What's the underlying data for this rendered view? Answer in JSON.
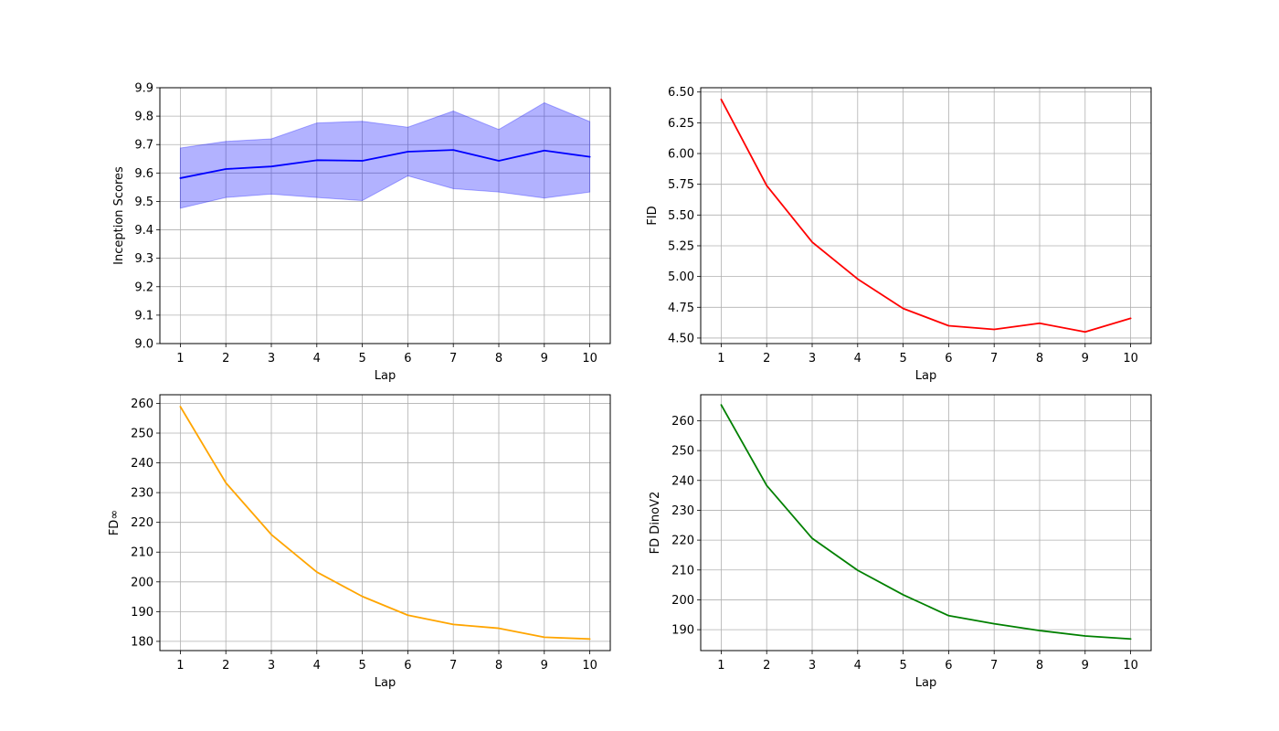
{
  "chart_data": [
    {
      "type": "line",
      "xlabel": "Lap",
      "ylabel": "Inception Scores",
      "x": [
        1,
        2,
        3,
        4,
        5,
        6,
        7,
        8,
        9,
        10
      ],
      "xticks": [
        "1",
        "2",
        "3",
        "4",
        "5",
        "6",
        "7",
        "8",
        "9",
        "10"
      ],
      "xlim": [
        0.55,
        10.45
      ],
      "ylim": [
        9.0,
        9.9
      ],
      "yticks": [
        9.0,
        9.1,
        9.2,
        9.3,
        9.4,
        9.5,
        9.6,
        9.7,
        9.8,
        9.9
      ],
      "ytick_labels": [
        "9.0",
        "9.1",
        "9.2",
        "9.3",
        "9.4",
        "9.5",
        "9.6",
        "9.7",
        "9.8",
        "9.9"
      ],
      "grid": true,
      "series": [
        {
          "values": [
            9.582,
            9.614,
            9.623,
            9.645,
            9.643,
            9.675,
            9.681,
            9.643,
            9.679,
            9.657
          ],
          "color": "#0000ff",
          "band_upper": [
            9.688,
            9.711,
            9.72,
            9.776,
            9.782,
            9.761,
            9.818,
            9.753,
            9.847,
            9.781
          ],
          "band_lower": [
            9.476,
            9.514,
            9.526,
            9.514,
            9.503,
            9.59,
            9.545,
            9.533,
            9.512,
            9.533
          ],
          "band_color": "#0000ff"
        }
      ]
    },
    {
      "type": "line",
      "xlabel": "Lap",
      "ylabel": "FID",
      "x": [
        1,
        2,
        3,
        4,
        5,
        6,
        7,
        8,
        9,
        10
      ],
      "xticks": [
        "1",
        "2",
        "3",
        "4",
        "5",
        "6",
        "7",
        "8",
        "9",
        "10"
      ],
      "xlim": [
        0.55,
        10.45
      ],
      "ylim": [
        4.455,
        6.535
      ],
      "yticks": [
        4.5,
        4.75,
        5.0,
        5.25,
        5.5,
        5.75,
        6.0,
        6.25,
        6.5
      ],
      "ytick_labels": [
        "4.50",
        "4.75",
        "5.00",
        "5.25",
        "5.50",
        "5.75",
        "6.00",
        "6.25",
        "6.50"
      ],
      "grid": true,
      "series": [
        {
          "values": [
            6.44,
            5.74,
            5.28,
            4.98,
            4.74,
            4.6,
            4.57,
            4.62,
            4.55,
            4.66
          ],
          "color": "#ff0000"
        }
      ]
    },
    {
      "type": "line",
      "xlabel": "Lap",
      "ylabel": "FD∞",
      "x": [
        1,
        2,
        3,
        4,
        5,
        6,
        7,
        8,
        9,
        10
      ],
      "xticks": [
        "1",
        "2",
        "3",
        "4",
        "5",
        "6",
        "7",
        "8",
        "9",
        "10"
      ],
      "xlim": [
        0.55,
        10.45
      ],
      "ylim": [
        176.9,
        262.9
      ],
      "yticks": [
        180,
        190,
        200,
        210,
        220,
        230,
        240,
        250,
        260
      ],
      "ytick_labels": [
        "180",
        "190",
        "200",
        "210",
        "220",
        "230",
        "240",
        "250",
        "260"
      ],
      "grid": true,
      "series": [
        {
          "values": [
            258.9,
            233.3,
            215.9,
            203.3,
            195.1,
            188.8,
            185.7,
            184.4,
            181.4,
            180.8
          ],
          "color": "#ffa500"
        }
      ]
    },
    {
      "type": "line",
      "xlabel": "Lap",
      "ylabel": "FD DinoV2",
      "x": [
        1,
        2,
        3,
        4,
        5,
        6,
        7,
        8,
        9,
        10
      ],
      "xticks": [
        "1",
        "2",
        "3",
        "4",
        "5",
        "6",
        "7",
        "8",
        "9",
        "10"
      ],
      "xlim": [
        0.55,
        10.45
      ],
      "ylim": [
        183.0,
        268.7
      ],
      "yticks": [
        190,
        200,
        210,
        220,
        230,
        240,
        250,
        260
      ],
      "ytick_labels": [
        "190",
        "200",
        "210",
        "220",
        "230",
        "240",
        "250",
        "260"
      ],
      "grid": true,
      "series": [
        {
          "values": [
            265.3,
            238.3,
            220.6,
            209.9,
            201.7,
            194.7,
            192.0,
            189.7,
            187.9,
            186.9
          ],
          "color": "#008000"
        }
      ]
    }
  ]
}
